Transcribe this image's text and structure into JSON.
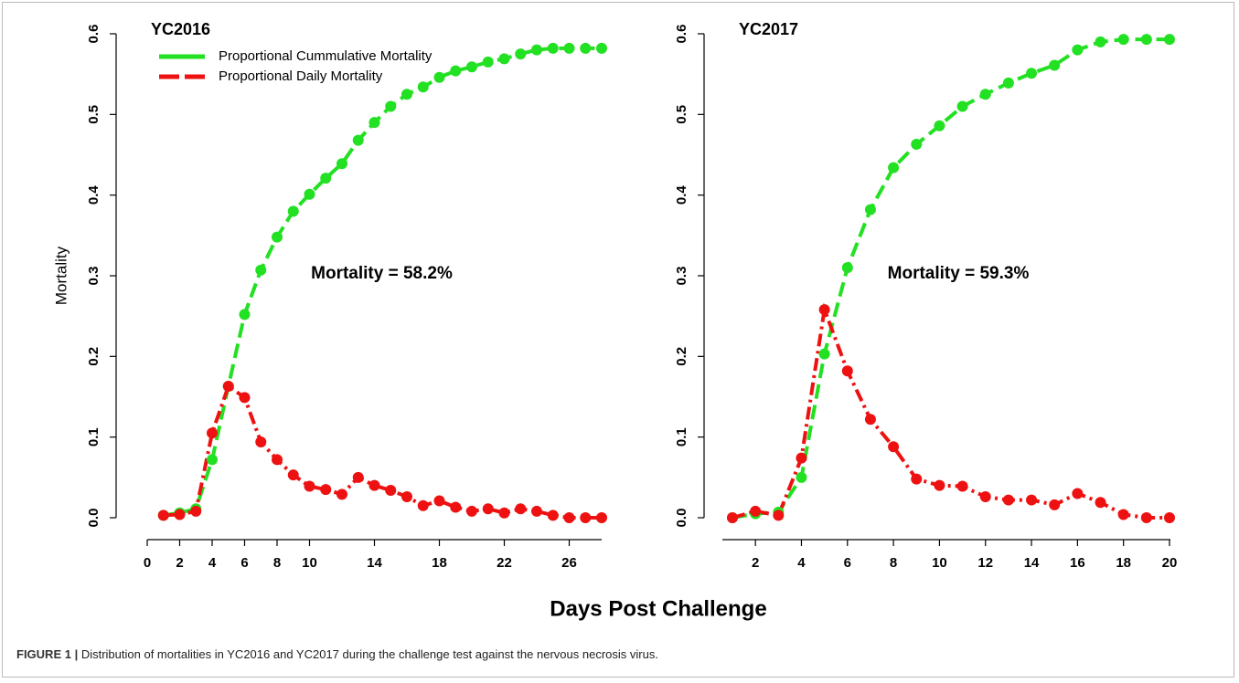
{
  "chart_data": [
    {
      "type": "line",
      "title": "YC2016",
      "annotation": "Mortality = 58.2%",
      "x": [
        1,
        2,
        3,
        4,
        5,
        6,
        7,
        8,
        9,
        10,
        11,
        12,
        13,
        14,
        15,
        16,
        17,
        18,
        19,
        20,
        21,
        22,
        23,
        24,
        25,
        26,
        27,
        28
      ],
      "xlim": [
        0,
        28
      ],
      "xticks": [
        0,
        2,
        4,
        6,
        8,
        10,
        14,
        18,
        22,
        26
      ],
      "ylim": [
        0,
        0.6
      ],
      "yticks": [
        {
          "value": 0,
          "label": "0.0"
        },
        0.1,
        0.2,
        0.3,
        0.4,
        0.5,
        0.6
      ],
      "legend": "top-left",
      "series": [
        {
          "name": "Proportional Cummulative Mortality",
          "color": "#22e022",
          "values": [
            0.003,
            0.006,
            0.011,
            0.072,
            0.163,
            0.252,
            0.307,
            0.348,
            0.38,
            0.401,
            0.421,
            0.439,
            0.468,
            0.49,
            0.51,
            0.525,
            0.534,
            0.546,
            0.554,
            0.559,
            0.565,
            0.569,
            0.575,
            0.58,
            0.582,
            0.582,
            0.582,
            0.582
          ]
        },
        {
          "name": "Proportional Daily Mortality",
          "color": "#ee1111",
          "values": [
            0.003,
            0.004,
            0.008,
            0.105,
            0.163,
            0.149,
            0.094,
            0.072,
            0.053,
            0.039,
            0.035,
            0.029,
            0.05,
            0.04,
            0.034,
            0.026,
            0.015,
            0.021,
            0.013,
            0.008,
            0.011,
            0.006,
            0.011,
            0.008,
            0.003,
            0,
            0,
            0
          ]
        }
      ]
    },
    {
      "type": "line",
      "title": "YC2017",
      "annotation": "Mortality = 59.3%",
      "x": [
        1,
        2,
        3,
        4,
        5,
        6,
        7,
        8,
        9,
        10,
        11,
        12,
        13,
        14,
        15,
        16,
        17,
        18,
        19,
        20
      ],
      "xlim": [
        1,
        20
      ],
      "xticks": [
        2,
        4,
        6,
        8,
        10,
        12,
        14,
        16,
        18,
        20
      ],
      "ylim": [
        0,
        0.6
      ],
      "yticks": [
        {
          "value": 0,
          "label": "0.0"
        },
        0.1,
        0.2,
        0.3,
        0.4,
        0.5,
        0.6
      ],
      "series": [
        {
          "name": "Proportional Cummulative Mortality",
          "color": "#22e022",
          "values": [
            0,
            0.005,
            0.007,
            0.05,
            0.203,
            0.31,
            0.382,
            0.434,
            0.463,
            0.486,
            0.51,
            0.525,
            0.539,
            0.551,
            0.561,
            0.58,
            0.59,
            0.593,
            0.593,
            0.593
          ]
        },
        {
          "name": "Proportional Daily Mortality",
          "color": "#ee1111",
          "values": [
            0,
            0.008,
            0.003,
            0.074,
            0.258,
            0.182,
            0.122,
            0.088,
            0.048,
            0.04,
            0.039,
            0.026,
            0.022,
            0.022,
            0.016,
            0.03,
            0.019,
            0.004,
            0,
            0
          ]
        }
      ]
    }
  ],
  "xlabel": "Days Post Challenge",
  "ylabel": "Mortality",
  "caption_label": "FIGURE 1 |",
  "caption": "Distribution of mortalities in YC2016 and YC2017 during the challenge test against the nervous necrosis virus."
}
